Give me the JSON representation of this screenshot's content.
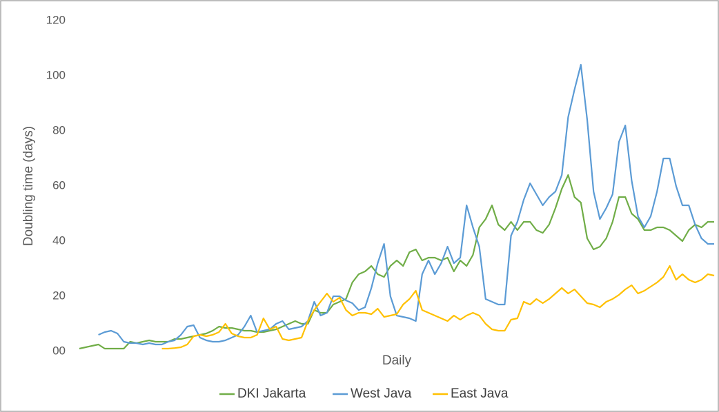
{
  "chart_data": {
    "type": "line",
    "y_label": "Doubling time (days)",
    "x_label": "Daily",
    "ylim": [
      0,
      120
    ],
    "yticks": [
      {
        "value": 0,
        "label": "00"
      },
      20,
      40,
      60,
      80,
      100,
      120
    ],
    "grid": false,
    "legend": "bottom",
    "series": [
      {
        "name": "DKI Jakarta",
        "color": "#70ad47",
        "values": [
          1,
          1.5,
          2,
          2.5,
          1,
          1,
          1,
          1,
          3.5,
          3,
          3.5,
          4,
          3.5,
          3.5,
          3.5,
          4.5,
          4.5,
          5,
          5.5,
          6,
          6.5,
          7.5,
          9,
          8.5,
          8.5,
          8,
          7.5,
          7.5,
          7,
          7,
          7.5,
          8,
          9,
          10,
          11,
          10,
          10,
          15,
          14,
          14,
          17,
          18,
          19,
          25,
          28,
          29,
          31,
          28,
          27,
          31,
          33,
          31,
          36,
          37,
          33,
          34,
          34,
          33,
          34,
          29,
          33,
          31,
          35,
          45,
          48,
          53,
          46,
          44,
          47,
          44,
          47,
          47,
          44,
          43,
          46,
          52,
          59,
          64,
          56,
          54,
          41,
          37,
          38,
          41,
          47,
          56,
          56,
          50,
          48,
          44,
          44,
          45,
          45,
          44,
          42,
          40,
          44,
          46,
          45,
          47,
          47
        ]
      },
      {
        "name": "West Java",
        "color": "#5b9bd5",
        "values": [
          null,
          null,
          null,
          6,
          7,
          7.5,
          6.5,
          3.5,
          3,
          3,
          2.5,
          3,
          2.5,
          2.5,
          3.5,
          4,
          6,
          9,
          9.5,
          5,
          4,
          3.5,
          3.5,
          4,
          5,
          6,
          9,
          13,
          7,
          7.5,
          8,
          10,
          11,
          8,
          8.5,
          9,
          11,
          18,
          13,
          14,
          20,
          20,
          18.5,
          17.5,
          15,
          16,
          23,
          32,
          39,
          20,
          13,
          12.5,
          12,
          11,
          28,
          33,
          28,
          32,
          38,
          32,
          34,
          53,
          45,
          38,
          19,
          18,
          17,
          17,
          42,
          47,
          55,
          61,
          57,
          53,
          56,
          58,
          64,
          85,
          95,
          104,
          84,
          58,
          48,
          52,
          57,
          76,
          82,
          62,
          49,
          45,
          49,
          58,
          70,
          70,
          60,
          53,
          53,
          46,
          41,
          39,
          39
        ]
      },
      {
        "name": "East Java",
        "color": "#ffc000",
        "values": [
          null,
          null,
          null,
          null,
          null,
          null,
          null,
          null,
          null,
          null,
          null,
          null,
          null,
          1,
          1,
          1.2,
          1.5,
          2.5,
          5.5,
          6,
          5.5,
          6,
          7,
          10,
          6.5,
          5.5,
          5,
          5,
          6,
          12,
          8,
          9,
          4.5,
          4,
          4.5,
          5,
          11,
          15,
          18,
          21,
          18,
          19.5,
          15,
          13,
          14,
          14,
          13.5,
          15.5,
          12.5,
          13,
          13.5,
          17,
          19,
          22,
          15,
          14,
          13,
          12,
          11,
          13,
          11.5,
          13,
          14,
          13,
          10,
          8,
          7.5,
          7.5,
          11.5,
          12,
          18,
          17,
          19,
          17.5,
          19,
          21,
          23,
          21,
          22.5,
          20,
          17.5,
          17,
          16,
          18,
          19,
          20.5,
          22.5,
          24,
          21,
          22,
          23.5,
          25,
          27,
          31,
          26,
          28,
          26,
          25,
          26,
          28,
          27.5
        ]
      }
    ]
  }
}
